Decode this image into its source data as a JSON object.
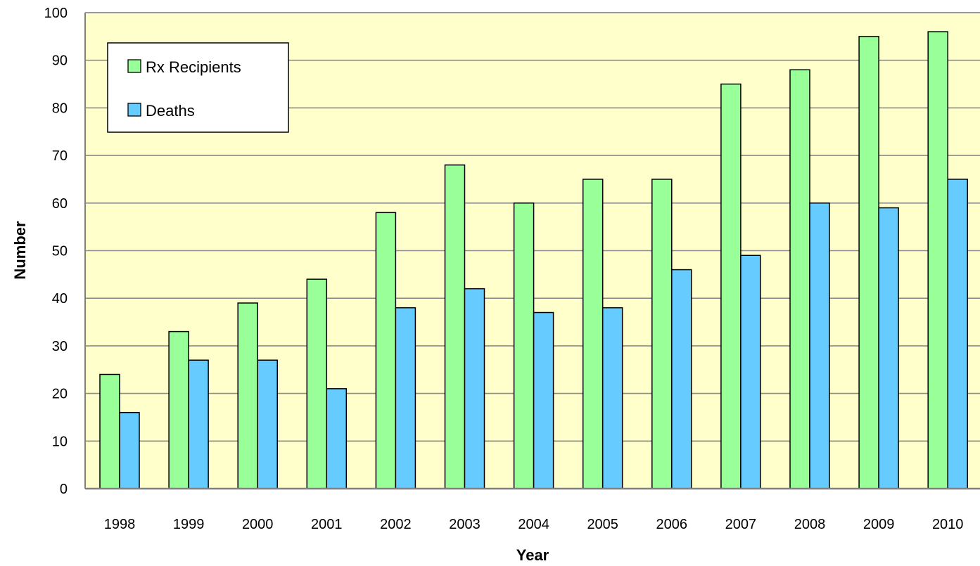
{
  "chart_data": {
    "type": "bar",
    "categories": [
      "1998",
      "1999",
      "2000",
      "2001",
      "2002",
      "2003",
      "2004",
      "2005",
      "2006",
      "2007",
      "2008",
      "2009",
      "2010"
    ],
    "series": [
      {
        "name": "Rx Recipients",
        "color": "#99ff99",
        "values": [
          24,
          33,
          39,
          44,
          58,
          68,
          60,
          65,
          65,
          85,
          88,
          95,
          96
        ]
      },
      {
        "name": "Deaths",
        "color": "#66ccff",
        "values": [
          16,
          27,
          27,
          21,
          38,
          42,
          37,
          38,
          46,
          49,
          60,
          59,
          65
        ]
      }
    ],
    "title": "",
    "xlabel": "Year",
    "ylabel": "Number",
    "ylim": [
      0,
      100
    ],
    "yticks": [
      0,
      10,
      20,
      30,
      40,
      50,
      60,
      70,
      80,
      90,
      100
    ],
    "grid": true,
    "legend_position": "top-left",
    "plot_background": "#ffffcc"
  }
}
